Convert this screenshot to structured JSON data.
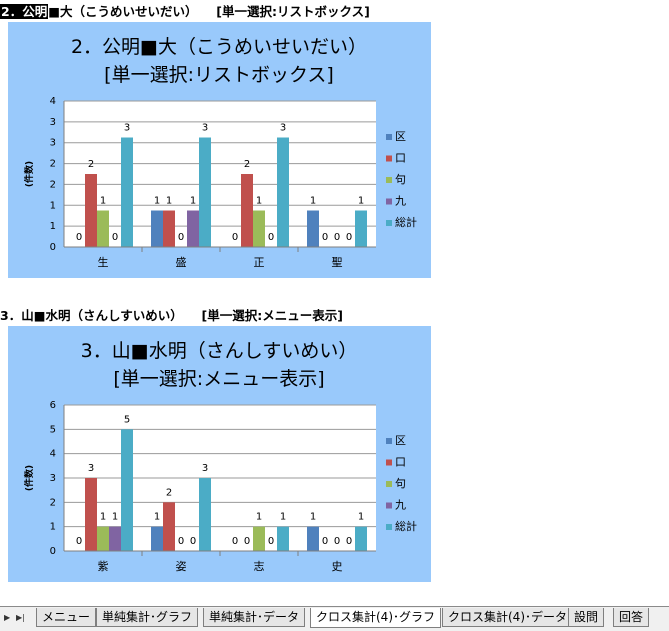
{
  "headings": [
    {
      "selected": "2．公明",
      "rest": "■大（こうめいせいだい）　　[単一選択:リストボックス]"
    },
    {
      "selected": "",
      "rest": "3．山■水明（さんしすいめい）　　[単一選択:メニュー表示]"
    }
  ],
  "chart_data": [
    {
      "type": "bar",
      "title": "2．公明■大（こうめいせいだい）",
      "subtitle": "[単一選択:リストボックス]",
      "ylabel": "(件数)",
      "ylim": [
        0,
        4
      ],
      "yticks": [
        "0",
        "1",
        "1",
        "2",
        "2",
        "3",
        "3",
        "4"
      ],
      "categories": [
        "生",
        "盛",
        "正",
        "聖"
      ],
      "series": [
        {
          "name": "区",
          "color": "#4f81bd",
          "values": [
            0,
            1,
            0,
            1
          ]
        },
        {
          "name": "口",
          "color": "#c0504d",
          "values": [
            2,
            1,
            2,
            0
          ]
        },
        {
          "name": "句",
          "color": "#9bbb59",
          "values": [
            1,
            0,
            1,
            0
          ]
        },
        {
          "name": "九",
          "color": "#8064a2",
          "values": [
            0,
            1,
            0,
            0
          ]
        },
        {
          "name": "総計",
          "color": "#4bacc6",
          "values": [
            3,
            3,
            3,
            1
          ]
        }
      ],
      "legend": "right",
      "grid": true
    },
    {
      "type": "bar",
      "title": "3．山■水明（さんしすいめい）",
      "subtitle": "[単一選択:メニュー表示]",
      "ylabel": "(件数)",
      "ylim": [
        0,
        6
      ],
      "yticks": [
        "0",
        "1",
        "2",
        "3",
        "4",
        "5",
        "6"
      ],
      "categories": [
        "紫",
        "姿",
        "志",
        "史"
      ],
      "series": [
        {
          "name": "区",
          "color": "#4f81bd",
          "values": [
            0,
            1,
            0,
            1
          ]
        },
        {
          "name": "口",
          "color": "#c0504d",
          "values": [
            3,
            2,
            0,
            0
          ]
        },
        {
          "name": "句",
          "color": "#9bbb59",
          "values": [
            1,
            0,
            1,
            0
          ]
        },
        {
          "name": "九",
          "color": "#8064a2",
          "values": [
            1,
            0,
            0,
            0
          ]
        },
        {
          "name": "総計",
          "color": "#4bacc6",
          "values": [
            5,
            3,
            1,
            1
          ]
        }
      ],
      "legend": "right",
      "grid": true
    }
  ],
  "tabs": [
    {
      "label": "メニュー",
      "active": false
    },
    {
      "label": "単純集計･グラフ",
      "active": false
    },
    {
      "label": "単純集計･データ",
      "active": false
    },
    {
      "label": "クロス集計(4)･グラフ",
      "active": true
    },
    {
      "label": "クロス集計(4)･データ",
      "active": false
    },
    {
      "label": "設問",
      "active": false
    },
    {
      "label": "回答",
      "active": false
    }
  ]
}
